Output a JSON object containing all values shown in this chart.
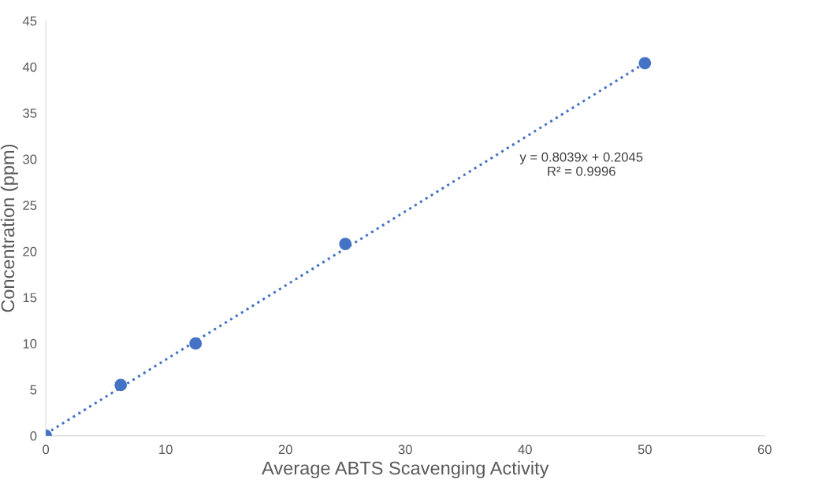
{
  "chart_data": {
    "type": "scatter",
    "xlabel": "Average ABTS Scavenging Activity",
    "ylabel": "Concentration (ppm)",
    "xlim": [
      0,
      60
    ],
    "xticks": [
      0,
      10,
      20,
      30,
      40,
      50,
      60
    ],
    "ylim": [
      0,
      45
    ],
    "yticks": [
      0,
      5,
      10,
      15,
      20,
      25,
      30,
      35,
      40,
      45
    ],
    "grid": false,
    "legend": false,
    "series": [
      {
        "color": "#4472c4",
        "marker": "circle",
        "x": [
          0,
          6.25,
          12.5,
          25,
          50
        ],
        "values": [
          0,
          5.5,
          10,
          20.8,
          40.4
        ]
      },
      {
        "type": "line",
        "color": "#4472c4",
        "line_style": "dotted",
        "marker": "none",
        "x": [
          0,
          50
        ],
        "values": [
          0.2,
          40.4
        ]
      }
    ],
    "annotations": [
      "y = 0.8039x + 0.2045\nR² = 0.9996"
    ]
  }
}
